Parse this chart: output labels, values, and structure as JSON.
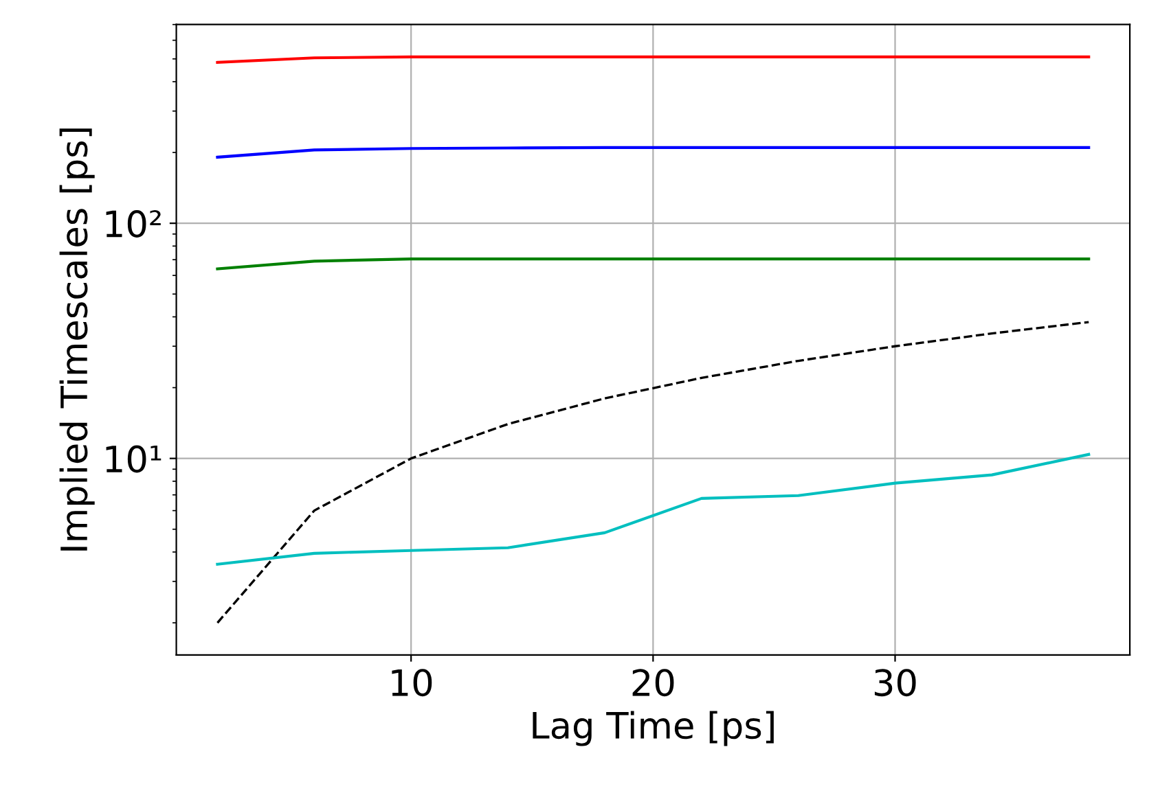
{
  "chart_data": {
    "type": "line",
    "xlabel": "Lag Time [ps]",
    "ylabel": "Implied Timescales [ps]",
    "log": "y",
    "grid": true,
    "x": [
      2,
      6,
      10,
      14,
      18,
      22,
      26,
      30,
      34,
      38
    ],
    "xlim": [
      0.3,
      39.7
    ],
    "xticks": [
      10,
      20,
      30
    ],
    "ylim": [
      1.46,
      700
    ],
    "yticks": [
      {
        "value": 10,
        "label": "10¹"
      },
      {
        "value": 100,
        "label": "10²"
      }
    ],
    "series": [
      {
        "color": "#ff0000",
        "values": [
          483,
          505,
          510,
          510,
          510,
          510,
          510,
          510,
          510,
          510
        ]
      },
      {
        "color": "#0000ff",
        "values": [
          191,
          205,
          208,
          209,
          210,
          210,
          210,
          210,
          210,
          210
        ]
      },
      {
        "color": "#008000",
        "values": [
          64,
          69,
          70.5,
          70.5,
          70.5,
          70.5,
          70.5,
          70.5,
          70.5,
          70.5
        ]
      },
      {
        "color": "#000000",
        "line_style": "dashed",
        "values": [
          2,
          6,
          10,
          14,
          18,
          22,
          26,
          30,
          34,
          38
        ]
      },
      {
        "color": "#00bfbf",
        "values": [
          3.55,
          3.95,
          4.06,
          4.17,
          4.83,
          6.76,
          6.95,
          7.85,
          8.51,
          10.4
        ]
      }
    ]
  }
}
